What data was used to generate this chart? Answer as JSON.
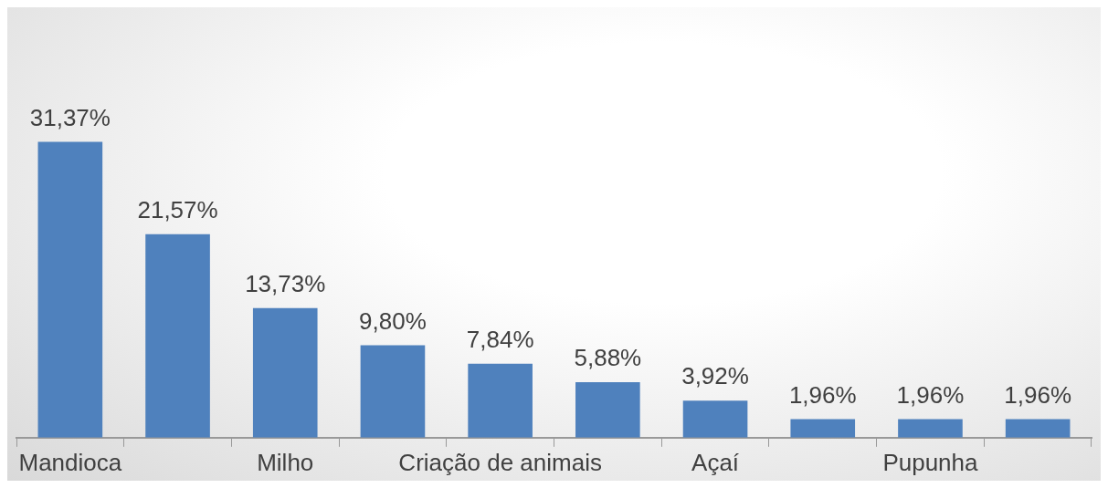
{
  "chart_data": {
    "type": "bar",
    "categories": [
      "Mandioca",
      null,
      "Milho",
      null,
      "Criação de animais",
      null,
      "Açaí",
      null,
      "Pupunha",
      null
    ],
    "values": [
      31.37,
      21.57,
      13.73,
      9.8,
      7.84,
      5.88,
      3.92,
      1.96,
      1.96,
      1.96
    ],
    "value_labels": [
      "31,37%",
      "21,57%",
      "13,73%",
      "9,80%",
      "7,84%",
      "5,88%",
      "3,92%",
      "1,96%",
      "1,96%",
      "1,96%"
    ],
    "color": "#4f81bd",
    "grid": false,
    "legend": false
  }
}
